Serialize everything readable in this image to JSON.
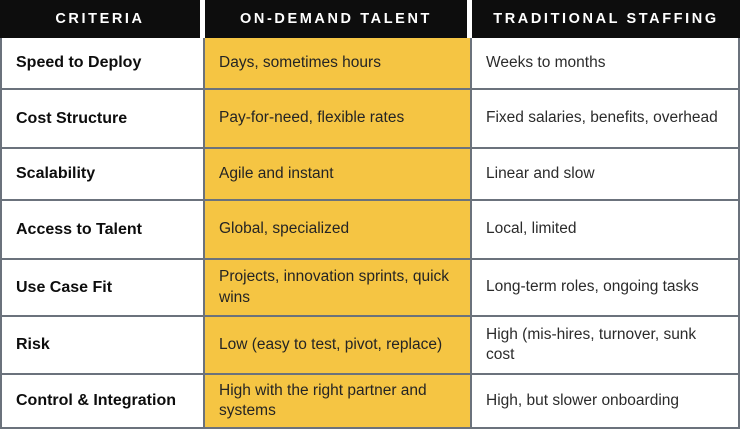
{
  "chart_data": {
    "type": "table",
    "columns": [
      "CRITERIA",
      "ON-DEMAND TALENT",
      "TRADITIONAL STAFFING"
    ],
    "rows": [
      [
        "Speed to Deploy",
        "Days, sometimes hours",
        "Weeks to months"
      ],
      [
        "Cost Structure",
        "Pay-for-need, flexible rates",
        "Fixed salaries, benefits, overhead"
      ],
      [
        "Scalability",
        "Agile and instant",
        "Linear and slow"
      ],
      [
        "Access to Talent",
        "Global, specialized",
        "Local, limited"
      ],
      [
        "Use Case Fit",
        "Projects, innovation sprints, quick wins",
        "Long-term roles, ongoing tasks"
      ],
      [
        "Risk",
        "Low (easy to test, pivot, replace)",
        "High (mis-hires, turnover, sunk cost"
      ],
      [
        "Control & Integration",
        "High with the right partner and systems",
        "High, but slower onboarding"
      ]
    ],
    "layout": {
      "highlighted_column": "ON-DEMAND TALENT",
      "grid": true,
      "legend": false
    }
  },
  "colors": {
    "header_bg": "#0d0d0d",
    "header_text": "#ffffff",
    "highlight": "#f5c543",
    "border": "#6b727c",
    "body_text": "#242424"
  }
}
